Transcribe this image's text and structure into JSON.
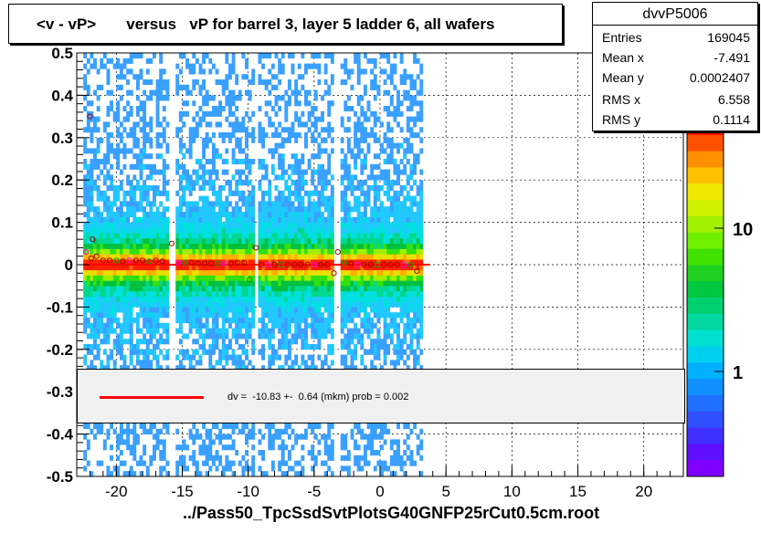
{
  "title": "<v - vP>       versus   vP for barrel 3, layer 5 ladder 6, all wafers",
  "xtitle": "../Pass50_TpcSsdSvtPlotsG40GNFP25rCut0.5cm.root",
  "stats": {
    "name": "dvvP5006",
    "rows": [
      {
        "label": "Entries",
        "value": "169045"
      },
      {
        "label": "Mean x",
        "value": "-7.491"
      },
      {
        "label": "Mean y",
        "value": "0.0002407"
      },
      {
        "label": "RMS x",
        "value": "6.558"
      },
      {
        "label": "RMS y",
        "value": "0.1114"
      }
    ]
  },
  "legend": {
    "fit_text": "dv =  -10.83 +-  0.64 (mkm) prob = 0.002",
    "line_color": "#ff0000"
  },
  "colorbar": {
    "tick_labels": [
      "1",
      "10",
      "10"
    ],
    "exponent": "2"
  },
  "chart_data": {
    "type": "heatmap",
    "title": "<v - vP>       versus   vP for barrel 3, layer 5 ladder 6, all wafers",
    "xlabel": "../Pass50_TpcSsdSvtPlotsG40GNFP25rCut0.5cm.root",
    "ylabel": "",
    "xlim": [
      -23,
      23
    ],
    "ylim": [
      -0.5,
      0.5
    ],
    "xticks": [
      -20,
      -15,
      -10,
      -5,
      0,
      5,
      10,
      15,
      20
    ],
    "yticks": [
      -0.5,
      -0.4,
      -0.3,
      -0.2,
      -0.1,
      0,
      0.1,
      0.2,
      0.3,
      0.4,
      0.5
    ],
    "xtick_labels": [
      "-20",
      "-15",
      "-10",
      "-5",
      "0",
      "5",
      "10",
      "15",
      "20"
    ],
    "ytick_labels": [
      "-0.5",
      "-0.4",
      "-0.3",
      "-0.2",
      "-0.1",
      "0",
      "0.1",
      "0.2",
      "0.3",
      "0.4",
      "0.5"
    ],
    "grid": true,
    "log_z": true,
    "data_x_range": [
      -22.5,
      3.2
    ],
    "gaps_x": [
      [
        -16.0,
        -15.6
      ],
      [
        -9.7,
        -9.3
      ],
      [
        -3.5,
        -3.1
      ]
    ],
    "fit_line": {
      "x": [
        -22.5,
        3.8
      ],
      "y": [
        0.0,
        0.0
      ],
      "color": "#ff0000"
    },
    "profile_points": [
      {
        "x": -22.3,
        "y": 0.03
      },
      {
        "x": -21.9,
        "y": 0.015
      },
      {
        "x": -21.5,
        "y": 0.02
      },
      {
        "x": -21.0,
        "y": 0.01
      },
      {
        "x": -20.5,
        "y": 0.01
      },
      {
        "x": -20.0,
        "y": 0.01
      },
      {
        "x": -19.5,
        "y": 0.008
      },
      {
        "x": -19.0,
        "y": 0.01
      },
      {
        "x": -18.5,
        "y": 0.01
      },
      {
        "x": -18.0,
        "y": 0.01
      },
      {
        "x": -17.5,
        "y": 0.008
      },
      {
        "x": -17.0,
        "y": 0.01
      },
      {
        "x": -16.5,
        "y": 0.008
      },
      {
        "x": -15.8,
        "y": 0.05
      },
      {
        "x": -15.3,
        "y": 0.005
      },
      {
        "x": -14.8,
        "y": 0.005
      },
      {
        "x": -14.3,
        "y": 0.005
      },
      {
        "x": -13.8,
        "y": 0.003
      },
      {
        "x": -13.3,
        "y": 0.003
      },
      {
        "x": -12.8,
        "y": 0.003
      },
      {
        "x": -12.3,
        "y": 0.003
      },
      {
        "x": -11.8,
        "y": 0.003
      },
      {
        "x": -11.3,
        "y": 0.003
      },
      {
        "x": -10.8,
        "y": 0.005
      },
      {
        "x": -10.3,
        "y": 0.005
      },
      {
        "x": -9.9,
        "y": -0.035
      },
      {
        "x": -9.4,
        "y": 0.04
      },
      {
        "x": -9.0,
        "y": 0.0
      },
      {
        "x": -8.5,
        "y": 0.0
      },
      {
        "x": -8.0,
        "y": 0.0
      },
      {
        "x": -7.5,
        "y": 0.0
      },
      {
        "x": -7.0,
        "y": 0.0
      },
      {
        "x": -6.5,
        "y": 0.0
      },
      {
        "x": -6.0,
        "y": 0.0
      },
      {
        "x": -5.5,
        "y": 0.0
      },
      {
        "x": -5.0,
        "y": 0.0
      },
      {
        "x": -4.5,
        "y": 0.0
      },
      {
        "x": -4.0,
        "y": 0.0
      },
      {
        "x": -3.5,
        "y": -0.02
      },
      {
        "x": -3.2,
        "y": 0.03
      },
      {
        "x": -2.7,
        "y": 0.005
      },
      {
        "x": -2.2,
        "y": 0.003
      },
      {
        "x": -1.7,
        "y": 0.0
      },
      {
        "x": -1.2,
        "y": 0.0
      },
      {
        "x": -0.7,
        "y": 0.0
      },
      {
        "x": -0.2,
        "y": 0.0
      },
      {
        "x": 0.3,
        "y": 0.0
      },
      {
        "x": 0.8,
        "y": 0.0
      },
      {
        "x": 1.3,
        "y": 0.0
      },
      {
        "x": 1.8,
        "y": 0.0
      },
      {
        "x": 2.3,
        "y": 0.0
      },
      {
        "x": 2.8,
        "y": -0.015
      },
      {
        "x": -22.0,
        "y": 0.35
      },
      {
        "x": -21.8,
        "y": 0.06
      }
    ]
  }
}
